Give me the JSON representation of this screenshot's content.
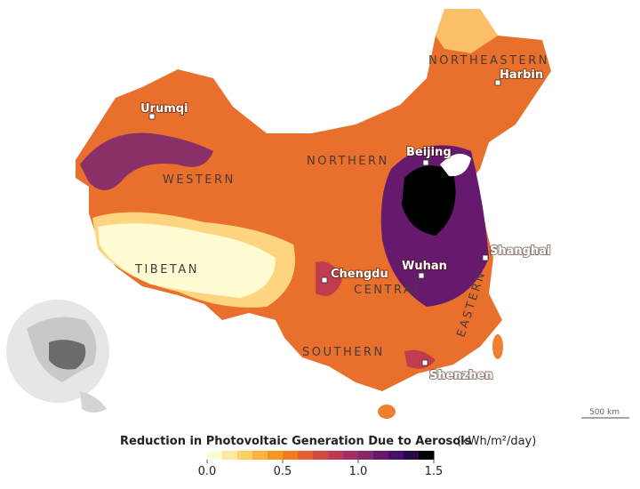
{
  "regions": [
    "NORTHEASTERN",
    "NORTHERN",
    "WESTERN",
    "TIBETAN",
    "CENTRAL",
    "EASTERN",
    "SOUTHERN"
  ],
  "cities": [
    "Harbin",
    "Urumqi",
    "Beijing",
    "Shanghai",
    "Chengdu",
    "Wuhan",
    "Shenzhen"
  ],
  "scale_bar": "500 km",
  "legend": {
    "title": "Reduction in Photovoltaic Generation Due to Aerosols",
    "unit": "(kWh/m²/day)",
    "range": [
      0,
      1.5
    ],
    "ticks": [
      {
        "value": 0,
        "label": "0.0"
      },
      0.5,
      {
        "value": 1,
        "label": "1.0"
      },
      1.5
    ],
    "colors": [
      "#fffbd2",
      "#fde8a0",
      "#fdd064",
      "#fbb440",
      "#f8961e",
      "#f27a22",
      "#e4602e",
      "#d04a3e",
      "#bc3a52",
      "#a42f62",
      "#86286c",
      "#661a6e",
      "#46106a",
      "#280a48",
      "#000000"
    ]
  }
}
